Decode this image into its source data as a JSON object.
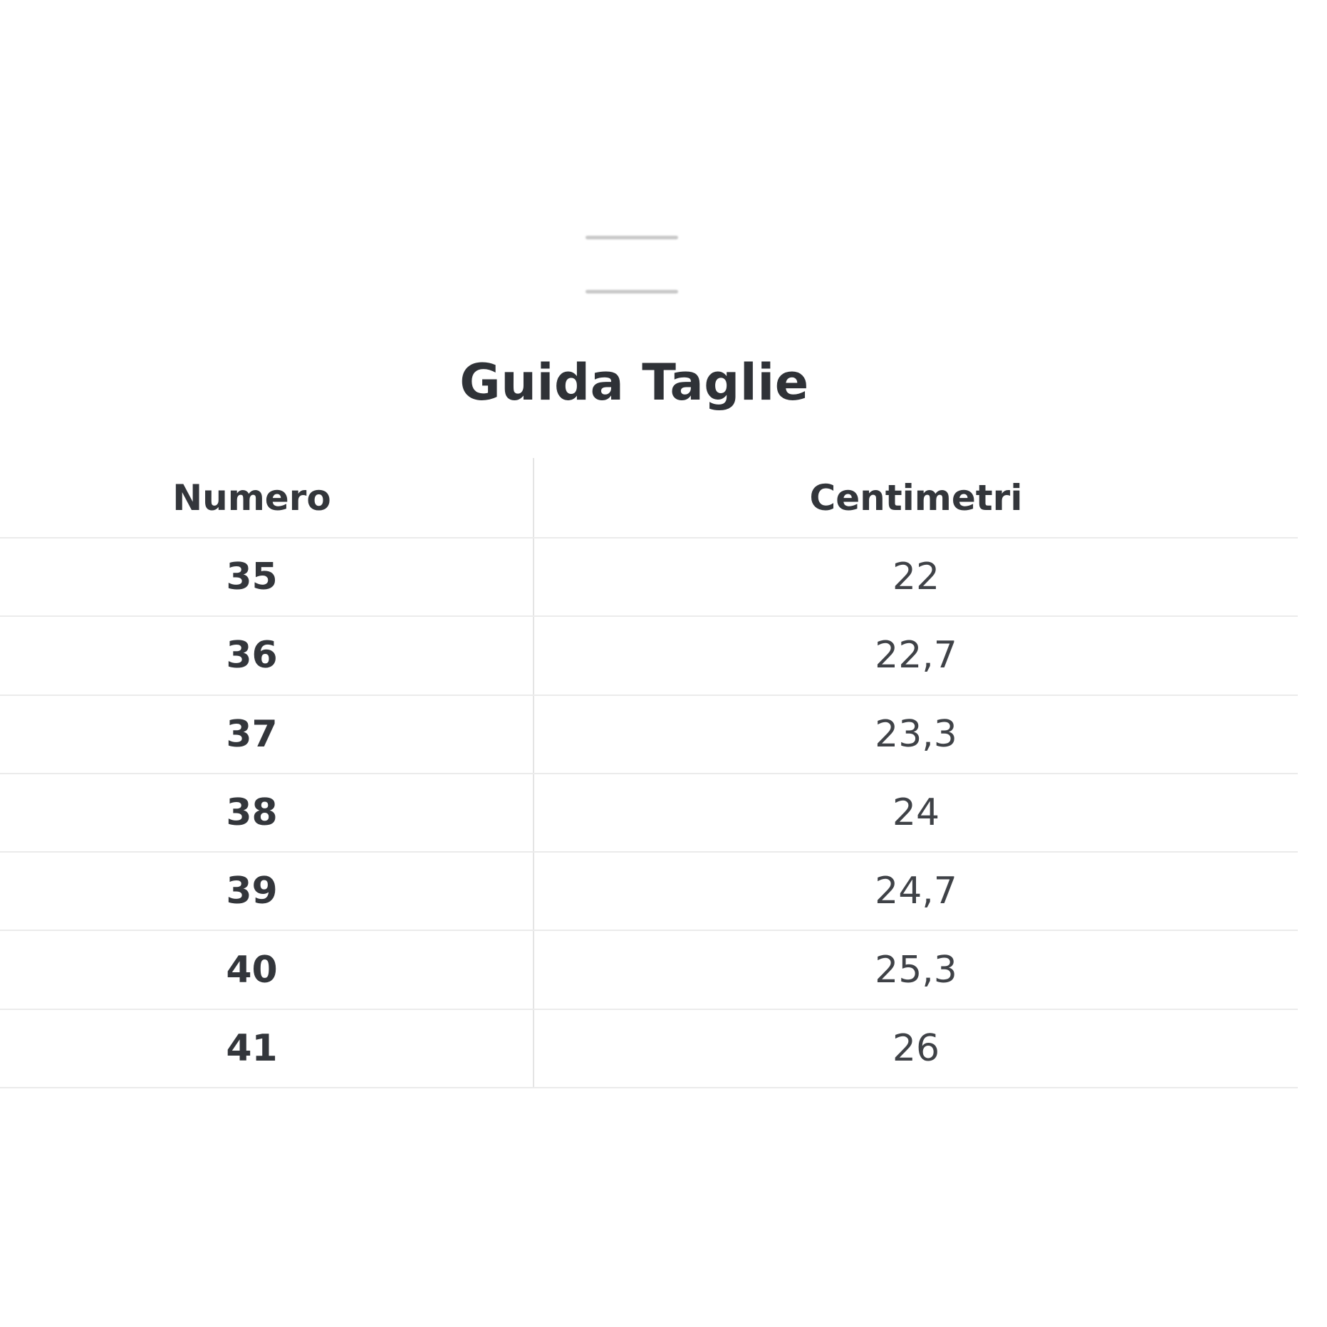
{
  "modal": {
    "title": "Guida Taglie"
  },
  "size_guide": {
    "columns": [
      "Numero",
      "Centimetri"
    ],
    "rows": [
      {
        "numero": "35",
        "centimetri": "22"
      },
      {
        "numero": "36",
        "centimetri": "22,7"
      },
      {
        "numero": "37",
        "centimetri": "23,3"
      },
      {
        "numero": "38",
        "centimetri": "24"
      },
      {
        "numero": "39",
        "centimetri": "24,7"
      },
      {
        "numero": "40",
        "centimetri": "25,3"
      },
      {
        "numero": "41",
        "centimetri": "26"
      }
    ]
  },
  "colors": {
    "background": "#ffffff",
    "text_primary": "#33363b",
    "text_secondary": "#3f4247",
    "row_line": "#ebebeb",
    "column_divider": "#e4e4e4",
    "drag_handle": "#c7c7c7"
  }
}
